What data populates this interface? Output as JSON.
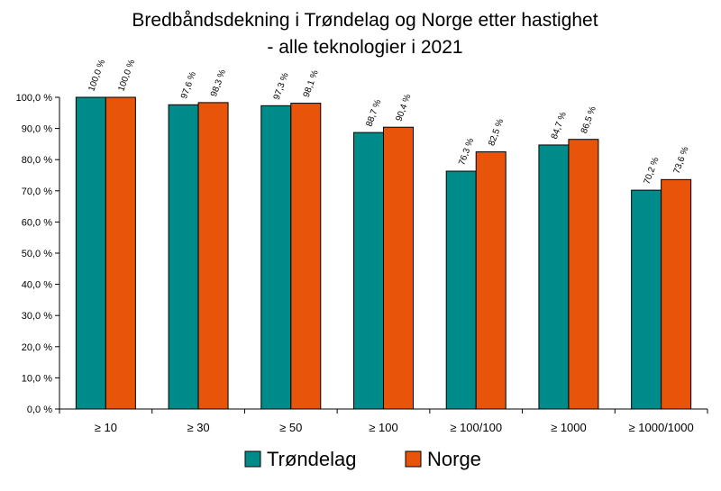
{
  "chart_data": {
    "type": "bar",
    "title_line1": "Bredbåndsdekning i  Trøndelag og Norge etter hastighet",
    "title_line2": "- alle teknologier  i 2021",
    "categories": [
      "≥ 10",
      "≥ 30",
      "≥ 50",
      "≥ 100",
      "≥ 100/100",
      "≥ 1000",
      "≥ 1000/1000"
    ],
    "series": [
      {
        "name": "Trøndelag",
        "color": "#008B8B",
        "values": [
          100.0,
          97.6,
          97.3,
          88.7,
          76.3,
          84.7,
          70.2
        ],
        "labels": [
          "100,0 %",
          "97,6 %",
          "97,3 %",
          "88,7 %",
          "76,3 %",
          "84,7 %",
          "70,2 %"
        ]
      },
      {
        "name": "Norge",
        "color": "#E8540A",
        "values": [
          100.0,
          98.3,
          98.1,
          90.4,
          82.5,
          86.5,
          73.6
        ],
        "labels": [
          "100,0 %",
          "98,3 %",
          "98,1 %",
          "90,4 %",
          "82,5 %",
          "86,5 %",
          "73,6 %"
        ]
      }
    ],
    "ylim": [
      0,
      100
    ],
    "yticks": [
      0,
      10,
      20,
      30,
      40,
      50,
      60,
      70,
      80,
      90,
      100
    ],
    "ytick_labels": [
      "0,0 %",
      "10,0 %",
      "20,0 %",
      "30,0 %",
      "40,0 %",
      "50,0 %",
      "60,0 %",
      "70,0 %",
      "80,0 %",
      "90,0 %",
      "100,0 %"
    ],
    "grid": false,
    "legend_position": "bottom"
  }
}
